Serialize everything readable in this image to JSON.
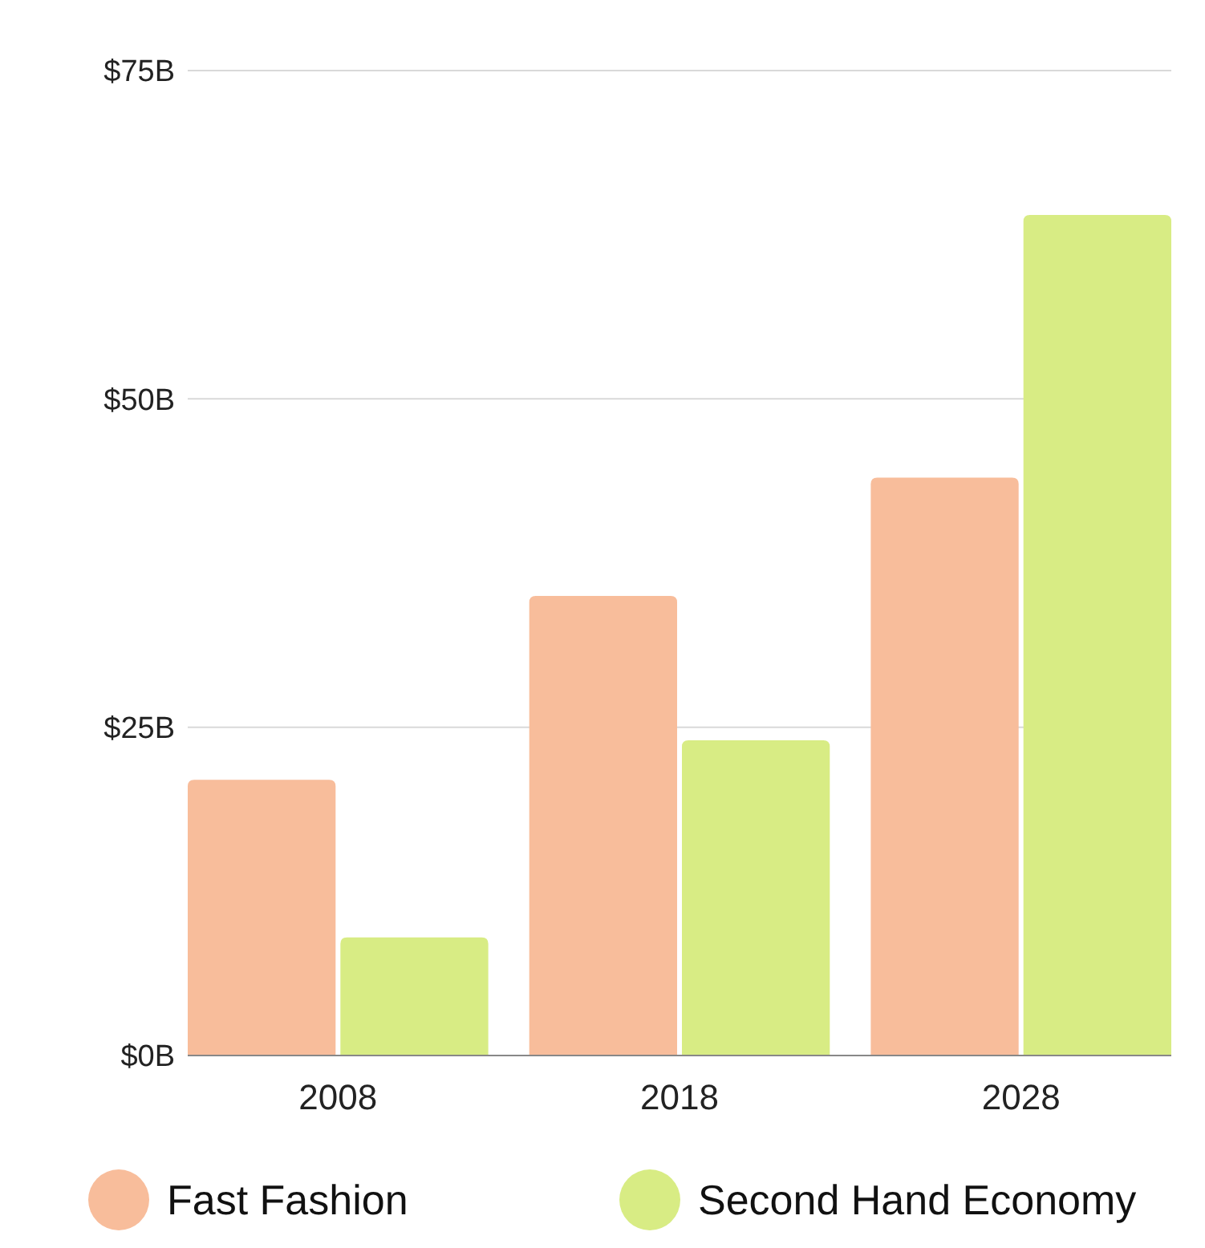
{
  "chart_data": {
    "type": "bar",
    "categories": [
      "2008",
      "2018",
      "2028"
    ],
    "series": [
      {
        "name": "Fast Fashion",
        "color": "#f8bd9b",
        "values": [
          21,
          35,
          44
        ]
      },
      {
        "name": "Second Hand Economy",
        "color": "#d8ec84",
        "values": [
          9,
          24,
          64
        ]
      }
    ],
    "ylim": [
      0,
      75
    ],
    "yticks": [
      {
        "value": 0,
        "label": "$0B"
      },
      {
        "value": 25,
        "label": "$25B"
      },
      {
        "value": 50,
        "label": "$50B"
      },
      {
        "value": 75,
        "label": "$75B"
      }
    ],
    "grid": "y",
    "legend": "bottom"
  }
}
